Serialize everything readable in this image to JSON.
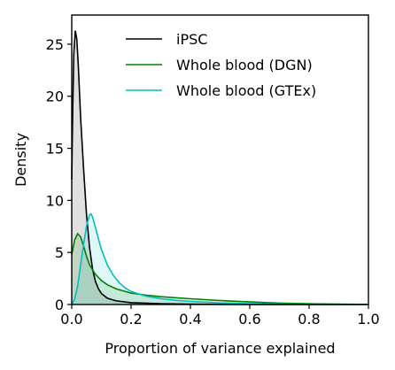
{
  "chart_data": {
    "type": "area",
    "title": "",
    "xlabel": "Proportion of variance explained",
    "ylabel": "Density",
    "xlim": [
      0.0,
      1.0
    ],
    "ylim": [
      0,
      27.8
    ],
    "xticks": [
      0.0,
      0.2,
      0.4,
      0.6,
      0.8,
      1.0
    ],
    "xtick_labels": [
      "0.0",
      "0.2",
      "0.4",
      "0.6",
      "0.8",
      "1.0"
    ],
    "yticks": [
      0,
      5,
      10,
      15,
      20,
      25
    ],
    "ytick_labels": [
      "0",
      "5",
      "10",
      "15",
      "20",
      "25"
    ],
    "grid": false,
    "legend": {
      "placement": "top-center"
    },
    "series": [
      {
        "name": "iPSC",
        "color": "#000000",
        "x": [
          0.0,
          0.003,
          0.007,
          0.012,
          0.017,
          0.022,
          0.03,
          0.04,
          0.05,
          0.06,
          0.07,
          0.08,
          0.09,
          0.1,
          0.12,
          0.15,
          0.2,
          0.3,
          0.4,
          0.5,
          0.6,
          0.8,
          1.0
        ],
        "y": [
          12.0,
          18.0,
          24.0,
          26.3,
          25.5,
          23.0,
          18.0,
          13.0,
          8.5,
          5.5,
          3.4,
          2.2,
          1.5,
          1.05,
          0.6,
          0.35,
          0.18,
          0.08,
          0.04,
          0.02,
          0.01,
          0.0,
          0.0
        ]
      },
      {
        "name": "Whole blood (DGN)",
        "color": "#008000",
        "x": [
          0.0,
          0.005,
          0.01,
          0.02,
          0.03,
          0.04,
          0.05,
          0.06,
          0.08,
          0.1,
          0.12,
          0.15,
          0.2,
          0.25,
          0.3,
          0.4,
          0.5,
          0.6,
          0.7,
          0.8,
          0.9,
          1.0
        ],
        "y": [
          4.8,
          5.5,
          6.2,
          6.8,
          6.5,
          5.6,
          4.6,
          3.8,
          2.9,
          2.3,
          1.9,
          1.5,
          1.1,
          0.9,
          0.75,
          0.55,
          0.38,
          0.25,
          0.14,
          0.07,
          0.03,
          0.01
        ]
      },
      {
        "name": "Whole blood (GTEx)",
        "color": "#00bfbf",
        "x": [
          0.0,
          0.01,
          0.02,
          0.03,
          0.04,
          0.05,
          0.06,
          0.065,
          0.07,
          0.08,
          0.09,
          0.1,
          0.12,
          0.14,
          0.16,
          0.18,
          0.2,
          0.25,
          0.3,
          0.35,
          0.4,
          0.5,
          0.6,
          0.7,
          0.8,
          1.0
        ],
        "y": [
          0.0,
          0.5,
          1.8,
          3.8,
          5.8,
          7.6,
          8.6,
          8.7,
          8.4,
          7.4,
          6.3,
          5.3,
          3.8,
          2.8,
          2.1,
          1.6,
          1.25,
          0.8,
          0.55,
          0.4,
          0.3,
          0.15,
          0.08,
          0.04,
          0.02,
          0.0
        ]
      }
    ]
  }
}
